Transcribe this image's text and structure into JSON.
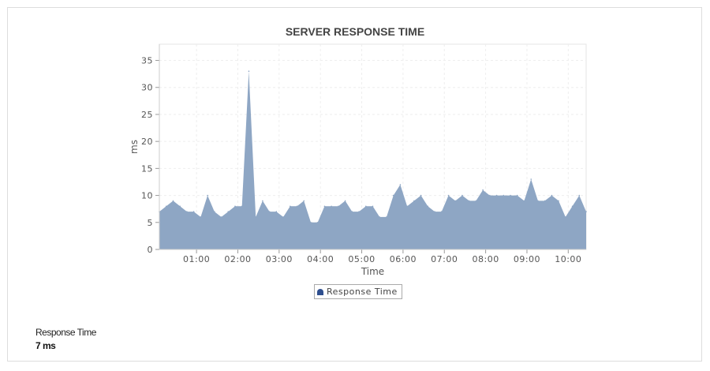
{
  "chart_data": {
    "type": "area",
    "title": "SERVER RESPONSE TIME",
    "xlabel": "Time",
    "ylabel": "ms",
    "ylim": [
      0,
      38
    ],
    "xlim": [
      "00:06",
      "10:26"
    ],
    "yticks": [
      0,
      5,
      10,
      15,
      20,
      25,
      30,
      35
    ],
    "xticks": [
      "01:00",
      "02:00",
      "03:00",
      "04:00",
      "05:00",
      "06:00",
      "07:00",
      "08:00",
      "09:00",
      "10:00"
    ],
    "grid": true,
    "legend_position": "bottom",
    "fill_color": "#8ea6c4",
    "series": [
      {
        "name": "Response Time",
        "color": "#2f4f8f",
        "x_start": "00:06",
        "x_step_minutes": 10,
        "values": [
          7,
          8,
          9,
          8,
          7,
          7,
          6,
          10,
          7,
          6,
          7,
          8,
          8,
          33,
          6,
          9,
          7,
          7,
          6,
          8,
          8,
          9,
          5,
          5,
          8,
          8,
          8,
          9,
          7,
          7,
          8,
          8,
          6,
          6,
          10,
          12,
          8,
          9,
          10,
          8,
          7,
          7,
          10,
          9,
          10,
          9,
          9,
          11,
          10,
          10,
          10,
          10,
          10,
          9,
          13,
          9,
          9,
          10,
          9,
          6,
          8,
          10,
          7
        ]
      }
    ]
  },
  "summary": {
    "label": "Response Time",
    "value": "7 ms"
  }
}
